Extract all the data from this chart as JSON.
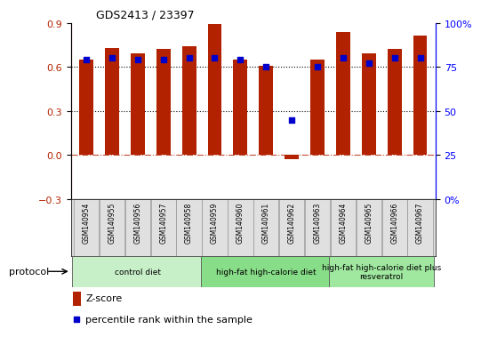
{
  "title": "GDS2413 / 23397",
  "samples": [
    "GSM140954",
    "GSM140955",
    "GSM140956",
    "GSM140957",
    "GSM140958",
    "GSM140959",
    "GSM140960",
    "GSM140961",
    "GSM140962",
    "GSM140963",
    "GSM140964",
    "GSM140965",
    "GSM140966",
    "GSM140967"
  ],
  "zscore": [
    0.65,
    0.73,
    0.69,
    0.72,
    0.74,
    0.89,
    0.65,
    0.61,
    -0.03,
    0.65,
    0.84,
    0.69,
    0.72,
    0.81
  ],
  "percentile": [
    79,
    80,
    79,
    79,
    80,
    80,
    79,
    75,
    45,
    75,
    80,
    77,
    80,
    80
  ],
  "bar_color": "#B22200",
  "dot_color": "#0000CC",
  "ylim_left": [
    -0.3,
    0.9
  ],
  "ylim_right": [
    0,
    100
  ],
  "yticks_left": [
    -0.3,
    0.0,
    0.3,
    0.6,
    0.9
  ],
  "yticks_right": [
    0,
    25,
    50,
    75,
    100
  ],
  "ytick_labels_right": [
    "0%",
    "25",
    "50",
    "75",
    "100%"
  ],
  "dotted_lines": [
    0.3,
    0.6
  ],
  "groups": [
    {
      "label": "control diet",
      "start": 0,
      "end": 5,
      "color": "#c8f0c8"
    },
    {
      "label": "high-fat high-calorie diet",
      "start": 5,
      "end": 10,
      "color": "#88dd88"
    },
    {
      "label": "high-fat high-calorie diet plus\nresveratrol",
      "start": 10,
      "end": 14,
      "color": "#a0e8a0"
    }
  ],
  "protocol_label": "protocol",
  "legend_zscore": "Z-score",
  "legend_percentile": "percentile rank within the sample",
  "bar_width": 0.55,
  "background_color": "#ffffff"
}
